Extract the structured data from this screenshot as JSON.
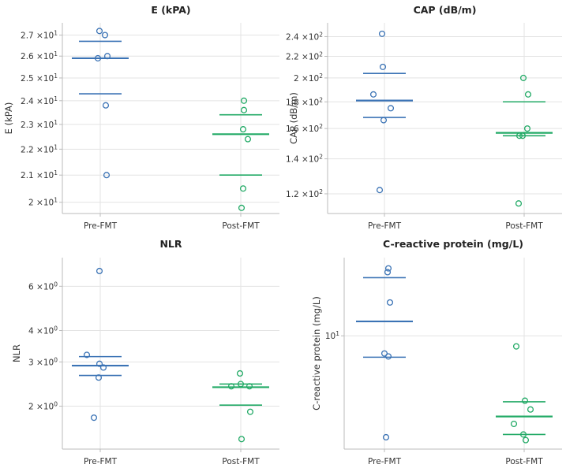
{
  "chart_data": [
    {
      "type": "scatter",
      "title": "E (kPA)",
      "ylabel": "E (kPA)",
      "yscale": "log",
      "ylim": [
        19.6,
        27.6
      ],
      "categories": [
        "Pre-FMT",
        "Post-FMT"
      ],
      "yticks": [
        20,
        21,
        22,
        23,
        24,
        25,
        26,
        27
      ],
      "ytick_labels": [
        "2 × 10^1",
        "2.1 × 10^1",
        "2.2 × 10^1",
        "2.3 × 10^1",
        "2.4 × 10^1",
        "2.5 × 10^1",
        "2.6 × 10^1",
        "2.7 × 10^1"
      ],
      "series": [
        {
          "name": "Pre-FMT",
          "color": "#3b73b5",
          "values": [
            27.2,
            27.0,
            26.0,
            25.9,
            23.8,
            21.0
          ],
          "mean": 25.9,
          "upper": 26.7,
          "lower": 24.3
        },
        {
          "name": "Post-FMT",
          "color": "#22aa66",
          "values": [
            24.0,
            23.6,
            22.8,
            22.4,
            20.5,
            19.8
          ],
          "mean": 22.6,
          "upper": 23.4,
          "lower": 21.0
        }
      ]
    },
    {
      "type": "scatter",
      "title": "CAP (dB/m)",
      "ylabel": "CAP (dB/m)",
      "yscale": "log",
      "ylim": [
        110,
        255
      ],
      "categories": [
        "Pre-FMT",
        "Post-FMT"
      ],
      "yticks": [
        120,
        140,
        160,
        180,
        200,
        220,
        240
      ],
      "ytick_labels": [
        "1.2 × 10^2",
        "1.4 × 10^2",
        "1.6 × 10^2",
        "1.8 × 10^2",
        "2 × 10^2",
        "2.2 × 10^2",
        "2.4 × 10^2"
      ],
      "series": [
        {
          "name": "Pre-FMT",
          "color": "#3b73b5",
          "values": [
            243,
            210,
            186,
            175,
            166,
            122
          ],
          "mean": 181,
          "upper": 204,
          "lower": 168
        },
        {
          "name": "Post-FMT",
          "color": "#22aa66",
          "values": [
            200,
            186,
            160,
            155,
            155,
            115
          ],
          "mean": 157,
          "upper": 180,
          "lower": 155
        }
      ]
    },
    {
      "type": "scatter",
      "title": "NLR",
      "ylabel": "NLR",
      "yscale": "log",
      "ylim": [
        1.35,
        7.8
      ],
      "categories": [
        "Pre-FMT",
        "Post-FMT"
      ],
      "yticks": [
        2,
        3,
        4,
        6
      ],
      "ytick_labels": [
        "2 × 10^0",
        "3 × 10^0",
        "4 × 10^0",
        "6 × 10^0"
      ],
      "series": [
        {
          "name": "Pre-FMT",
          "color": "#3b73b5",
          "values": [
            6.9,
            3.2,
            2.95,
            2.85,
            2.6,
            1.8
          ],
          "mean": 2.9,
          "upper": 3.15,
          "lower": 2.65
        },
        {
          "name": "Post-FMT",
          "color": "#22aa66",
          "values": [
            2.7,
            2.45,
            2.4,
            2.4,
            1.9,
            1.48
          ],
          "mean": 2.38,
          "upper": 2.45,
          "lower": 2.02
        }
      ]
    },
    {
      "type": "scatter",
      "title": "C-reactive protein (mg/L)",
      "ylabel": "C-reactive protein (mg/L)",
      "yscale": "log",
      "ylim": [
        4.1,
        18.5
      ],
      "categories": [
        "Pre-FMT",
        "Post-FMT"
      ],
      "yticks": [
        10
      ],
      "ytick_labels": [
        "10^1"
      ],
      "series": [
        {
          "name": "Pre-FMT",
          "color": "#3b73b5",
          "values": [
            17.0,
            16.5,
            13.0,
            8.7,
            8.5,
            4.5
          ],
          "mean": 11.2,
          "upper": 15.8,
          "lower": 8.45
        },
        {
          "name": "Post-FMT",
          "color": "#22aa66",
          "values": [
            9.2,
            6.0,
            5.6,
            5.0,
            4.6,
            4.4
          ],
          "mean": 5.3,
          "upper": 5.95,
          "lower": 4.6
        }
      ]
    }
  ]
}
